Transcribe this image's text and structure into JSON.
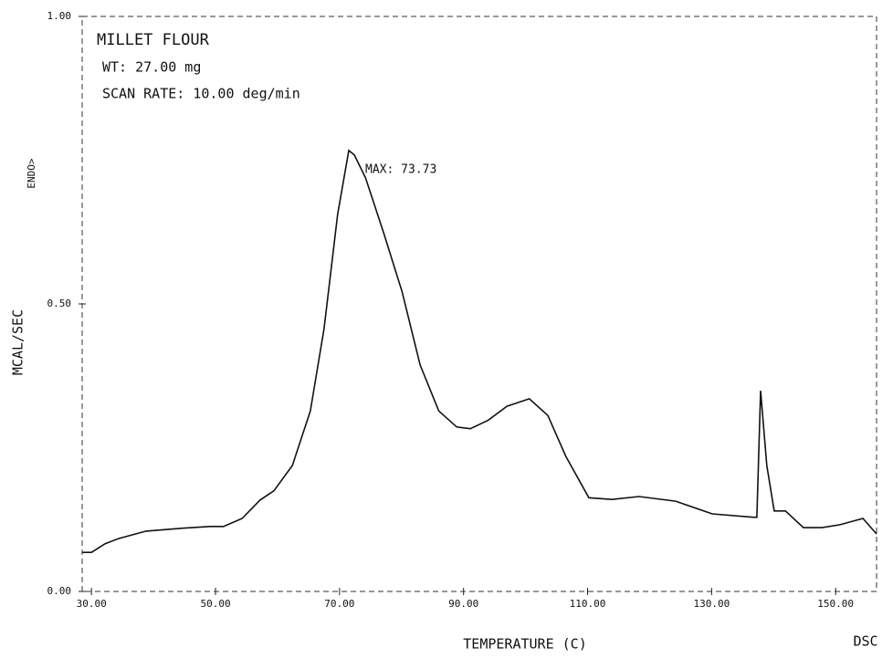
{
  "chart_data": {
    "type": "line",
    "title": "MILLET FLOUR",
    "annotations": [
      "WT:  27.00 mg",
      "SCAN RATE:  10.00 deg/min",
      "MAX: 73.73",
      "ENDO>",
      "DSC"
    ],
    "x_label": "TEMPERATURE (C)",
    "y_label": "MCAL/SEC",
    "xlim": [
      28.5,
      156.6
    ],
    "ylim": [
      0,
      1
    ],
    "xticks": [
      {
        "value": 30,
        "label": "30.00"
      },
      {
        "value": 50,
        "label": "50.00"
      },
      {
        "value": 70,
        "label": "70.00"
      },
      {
        "value": 90,
        "label": "90.00"
      },
      {
        "value": 110,
        "label": "110.00"
      },
      {
        "value": 130,
        "label": "130.00"
      },
      {
        "value": 150,
        "label": "150.00"
      }
    ],
    "yticks": [
      {
        "value": 0,
        "label": "0.00"
      },
      {
        "value": 0.5,
        "label": "0.50"
      },
      {
        "value": 1,
        "label": "1.00"
      }
    ],
    "x": [
      28.5,
      30,
      32.2,
      34.4,
      38.8,
      44.7,
      49.1,
      51.3,
      54.3,
      57.2,
      59.4,
      62.4,
      65.3,
      67.5,
      69.7,
      71.5,
      72.4,
      74.2,
      77.1,
      80.1,
      83.0,
      86.0,
      88.9,
      91.1,
      94.0,
      97.0,
      100.6,
      103.6,
      106.5,
      110.2,
      113.9,
      118.3,
      124.2,
      130.1,
      136.7,
      137.3,
      137.9,
      138.9,
      140.1,
      141.9,
      144.8,
      147.8,
      150.7,
      154.4,
      156.6
    ],
    "series": [
      {
        "name": "MILLET FLOUR",
        "color": "#111111",
        "values": [
          0.068,
          0.068,
          0.083,
          0.092,
          0.105,
          0.11,
          0.113,
          0.113,
          0.127,
          0.159,
          0.175,
          0.219,
          0.314,
          0.457,
          0.656,
          0.767,
          0.759,
          0.719,
          0.624,
          0.521,
          0.394,
          0.314,
          0.286,
          0.283,
          0.298,
          0.322,
          0.335,
          0.306,
          0.235,
          0.163,
          0.16,
          0.165,
          0.157,
          0.135,
          0.129,
          0.129,
          0.349,
          0.219,
          0.14,
          0.14,
          0.111,
          0.111,
          0.116,
          0.127,
          0.1
        ]
      }
    ]
  }
}
